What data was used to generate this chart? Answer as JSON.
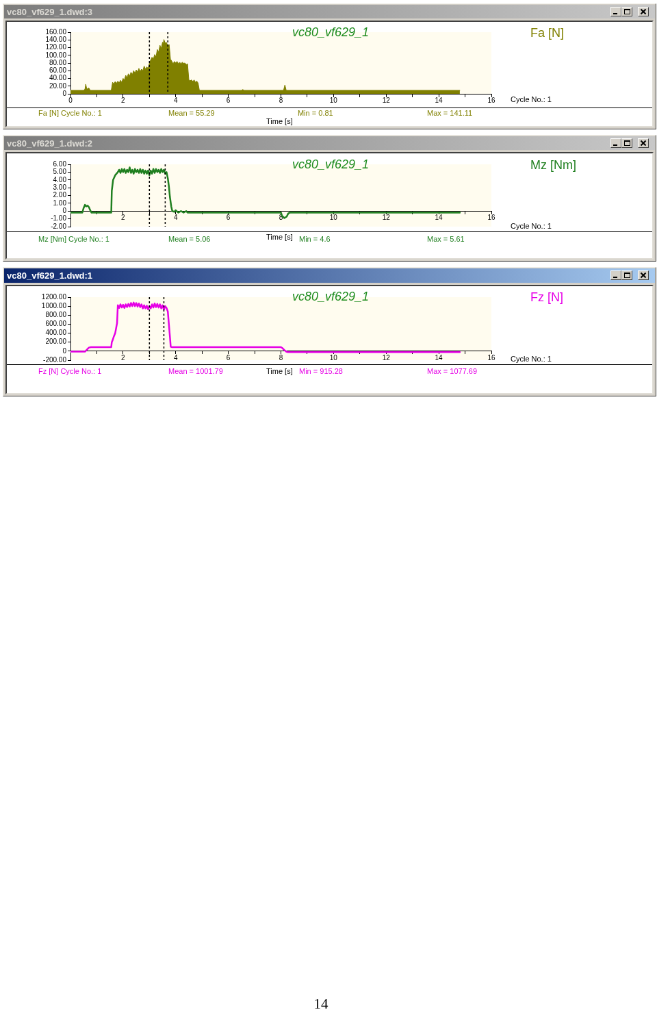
{
  "chart_data": [
    {
      "type": "area",
      "title": "vc80_vf629_1.dwd:3",
      "subtitle": "vc80_vf629_1",
      "xlabel": "Time [s]",
      "x": [
        0,
        0.5,
        0.55,
        0.58,
        0.62,
        0.7,
        0.75,
        1.55,
        1.6,
        1.65,
        1.7,
        1.75,
        1.8,
        1.85,
        1.9,
        1.95,
        2.0,
        2.05,
        2.1,
        2.15,
        2.2,
        2.25,
        2.3,
        2.35,
        2.4,
        2.45,
        2.5,
        2.55,
        2.6,
        2.65,
        2.7,
        2.75,
        2.8,
        2.85,
        2.9,
        2.95,
        3.0,
        3.05,
        3.1,
        3.15,
        3.2,
        3.25,
        3.3,
        3.35,
        3.4,
        3.45,
        3.5,
        3.525,
        3.55,
        3.6,
        3.65,
        3.7,
        3.75,
        3.8,
        3.85,
        3.9,
        3.95,
        4.0,
        4.05,
        4.1,
        4.15,
        4.2,
        4.25,
        4.3,
        4.35,
        4.4,
        4.45,
        4.5,
        4.55,
        4.6,
        4.65,
        4.7,
        4.75,
        4.8,
        4.85,
        4.9,
        6.5,
        6.55,
        6.6,
        8.1,
        8.15,
        8.2,
        14.8
      ],
      "series": [
        {
          "name": "Fa [N]",
          "color": "#808000",
          "values": [
            9,
            9,
            12,
            25,
            12,
            15,
            9,
            9,
            30,
            26,
            32,
            27,
            33,
            28,
            35,
            30,
            40,
            36,
            48,
            42,
            52,
            46,
            56,
            50,
            60,
            54,
            62,
            56,
            66,
            58,
            64,
            60,
            72,
            64,
            70,
            66,
            80,
            88,
            95,
            90,
            102,
            96,
            115,
            108,
            126,
            118,
            134,
            128,
            141,
            132,
            133,
            124,
            128,
            90,
            85,
            78,
            84,
            80,
            84,
            78,
            82,
            78,
            82,
            79,
            80,
            76,
            78,
            36,
            34,
            36,
            32,
            36,
            30,
            33,
            28,
            9,
            9,
            11,
            9,
            9,
            23,
            9,
            9
          ]
        }
      ],
      "xlim": [
        0,
        16
      ],
      "xticks": [
        {
          "value": 0,
          "label": "0"
        },
        {
          "value": 1,
          "label": null
        },
        2,
        {
          "value": 3,
          "label": null
        },
        4,
        {
          "value": 5,
          "label": null
        },
        6,
        {
          "value": 7,
          "label": null
        },
        8,
        {
          "value": 9,
          "label": null
        },
        10,
        {
          "value": 11,
          "label": null
        },
        12,
        {
          "value": 13,
          "label": null
        },
        14,
        {
          "value": 15,
          "label": null
        },
        16
      ],
      "ylim": [
        0,
        160
      ],
      "yticks": [
        {
          "value": 0,
          "label": "0"
        },
        {
          "value": 20,
          "label": "20.00"
        },
        {
          "value": 40,
          "label": "40.00"
        },
        {
          "value": 60,
          "label": "60.00"
        },
        {
          "value": 80,
          "label": "80.00"
        },
        {
          "value": 100,
          "label": "100.00"
        },
        {
          "value": 120,
          "label": "120.00"
        },
        {
          "value": 140,
          "label": "140.00"
        },
        {
          "value": 160,
          "label": "160.00"
        }
      ],
      "ref_lines": [
        {
          "axis": "x",
          "value": 3.0,
          "color": "#000000",
          "line_style": "dashed"
        },
        {
          "axis": "x",
          "value": 3.7,
          "color": "#000000",
          "line_style": "dashed"
        }
      ],
      "annotations": [
        "Fa [N] Cycle No.: 1",
        "Mean = 55.29",
        "Min = 0.81",
        "Max = 141.11",
        "Cycle No.: 1"
      ]
    },
    {
      "type": "line",
      "title": "vc80_vf629_1.dwd:2",
      "subtitle": "vc80_vf629_1",
      "xlabel": "Time [s]",
      "x": [
        0,
        0.45,
        0.5,
        0.55,
        0.6,
        0.65,
        0.7,
        0.75,
        0.8,
        1.55,
        1.57,
        1.62,
        1.7,
        1.8,
        1.85,
        1.9,
        1.95,
        2.0,
        2.05,
        2.1,
        2.15,
        2.2,
        2.25,
        2.3,
        2.35,
        2.4,
        2.45,
        2.5,
        2.55,
        2.6,
        2.65,
        2.7,
        2.75,
        2.8,
        2.85,
        2.9,
        2.95,
        3.0,
        3.05,
        3.1,
        3.15,
        3.2,
        3.25,
        3.3,
        3.35,
        3.4,
        3.45,
        3.5,
        3.55,
        3.6,
        3.65,
        3.7,
        3.74,
        3.78,
        3.83,
        3.87,
        3.95,
        4.0,
        4.1,
        4.2,
        4.3,
        4.4,
        4.45,
        8.0,
        8.04,
        8.13,
        8.22,
        8.28,
        8.35,
        14.8
      ],
      "series": [
        {
          "name": "Mz [Nm]",
          "color": "#1f7f1f",
          "values": [
            -0.2,
            -0.2,
            0.4,
            0.8,
            0.6,
            0.7,
            0.5,
            0.1,
            -0.2,
            -0.2,
            2.6,
            4.0,
            4.6,
            5.0,
            5.3,
            4.9,
            5.4,
            5.0,
            5.4,
            4.9,
            5.3,
            5.0,
            5.6,
            4.9,
            5.3,
            4.8,
            5.4,
            5.0,
            5.3,
            4.9,
            5.4,
            4.9,
            5.3,
            4.8,
            5.2,
            4.8,
            5.2,
            4.6,
            5.2,
            4.8,
            5.4,
            4.9,
            5.4,
            5.0,
            5.3,
            4.9,
            5.4,
            5.0,
            5.3,
            4.8,
            5.0,
            4.2,
            3.2,
            1.8,
            0.6,
            0.0,
            -0.1,
            0.1,
            -0.2,
            0.0,
            -0.2,
            0.0,
            -0.2,
            -0.2,
            -0.6,
            -0.9,
            -0.7,
            -0.3,
            -0.2,
            -0.2
          ]
        }
      ],
      "xlim": [
        0,
        16
      ],
      "xticks": [
        {
          "value": 1,
          "label": null
        },
        2,
        {
          "value": 3,
          "label": null
        },
        4,
        {
          "value": 5,
          "label": null
        },
        6,
        {
          "value": 7,
          "label": null
        },
        8,
        {
          "value": 9,
          "label": null
        },
        10,
        {
          "value": 11,
          "label": null
        },
        12,
        {
          "value": 13,
          "label": null
        },
        14,
        {
          "value": 15,
          "label": null
        },
        16
      ],
      "ylim": [
        -2,
        6
      ],
      "yticks": [
        {
          "value": -2,
          "label": "-2.00"
        },
        {
          "value": -1,
          "label": "-1.00"
        },
        {
          "value": 0,
          "label": "0"
        },
        {
          "value": 1,
          "label": "1.00"
        },
        {
          "value": 2,
          "label": "2.00"
        },
        {
          "value": 3,
          "label": "3.00"
        },
        {
          "value": 4,
          "label": "4.00"
        },
        {
          "value": 5,
          "label": "5.00"
        },
        {
          "value": 6,
          "label": "6.00"
        }
      ],
      "ref_lines": [
        {
          "axis": "x",
          "value": 3.0,
          "color": "#000000",
          "line_style": "dashed"
        },
        {
          "axis": "x",
          "value": 3.6,
          "color": "#000000",
          "line_style": "dashed"
        }
      ],
      "annotations": [
        "Mz [Nm] Cycle No.: 1",
        "Mean = 5.06",
        "Min = 4.6",
        "Max = 5.61",
        "Cycle No.: 1"
      ]
    },
    {
      "type": "line",
      "title": "vc80_vf629_1.dwd:1",
      "subtitle": "vc80_vf629_1",
      "xlabel": "Time [s]",
      "x": [
        0,
        0.55,
        0.6,
        0.7,
        0.78,
        1.55,
        1.57,
        1.6,
        1.65,
        1.7,
        1.75,
        1.77,
        1.8,
        1.85,
        1.9,
        1.95,
        2.0,
        2.05,
        2.1,
        2.15,
        2.2,
        2.25,
        2.3,
        2.35,
        2.4,
        2.45,
        2.5,
        2.55,
        2.6,
        2.65,
        2.7,
        2.75,
        2.8,
        2.85,
        2.9,
        2.95,
        3.0,
        3.05,
        3.1,
        3.15,
        3.2,
        3.25,
        3.3,
        3.35,
        3.4,
        3.45,
        3.5,
        3.55,
        3.6,
        3.65,
        3.7,
        3.74,
        3.78,
        3.81,
        3.86,
        8.0,
        8.05,
        8.12,
        8.2,
        8.25,
        14.8
      ],
      "series": [
        {
          "name": "Fz [N]",
          "color": "#e600e6",
          "values": [
            -10,
            -10,
            20,
            80,
            90,
            90,
            200,
            240,
            330,
            400,
            560,
            620,
            1020,
            960,
            1040,
            970,
            1030,
            960,
            1040,
            980,
            1050,
            990,
            1070,
            1000,
            1080,
            1000,
            1070,
            990,
            1060,
            980,
            1040,
            950,
            1020,
            950,
            1010,
            930,
            1000,
            950,
            1040,
            970,
            1060,
            980,
            1050,
            970,
            1040,
            950,
            1020,
            920,
            1000,
            960,
            880,
            600,
            320,
            100,
            90,
            90,
            70,
            30,
            -10,
            -20,
            -20
          ]
        }
      ],
      "xlim": [
        0,
        16
      ],
      "xticks": [
        {
          "value": 1,
          "label": null
        },
        2,
        {
          "value": 3,
          "label": null
        },
        4,
        {
          "value": 5,
          "label": null
        },
        6,
        {
          "value": 7,
          "label": null
        },
        8,
        {
          "value": 9,
          "label": null
        },
        10,
        {
          "value": 11,
          "label": null
        },
        12,
        {
          "value": 13,
          "label": null
        },
        14,
        {
          "value": 15,
          "label": null
        },
        16
      ],
      "ylim": [
        -200,
        1200
      ],
      "yticks": [
        {
          "value": -200,
          "label": "-200.00"
        },
        {
          "value": 0,
          "label": "0"
        },
        {
          "value": 200,
          "label": "200.00"
        },
        {
          "value": 400,
          "label": "400.00"
        },
        {
          "value": 600,
          "label": "600.00"
        },
        {
          "value": 800,
          "label": "800.00"
        },
        {
          "value": 1000,
          "label": "1000.00"
        },
        {
          "value": 1200,
          "label": "1200.00"
        }
      ],
      "ref_lines": [
        {
          "axis": "x",
          "value": 3.0,
          "color": "#000000",
          "line_style": "dashed"
        },
        {
          "axis": "x",
          "value": 3.55,
          "color": "#000000",
          "line_style": "dashed"
        }
      ],
      "annotations": [
        "Fz [N] Cycle No.: 1",
        "Mean = 1001.79",
        "Min = 915.28",
        "Max = 1077.69",
        "Cycle No.: 1"
      ]
    },
    {
      "type": "other",
      "annotations": [
        "14"
      ]
    }
  ]
}
